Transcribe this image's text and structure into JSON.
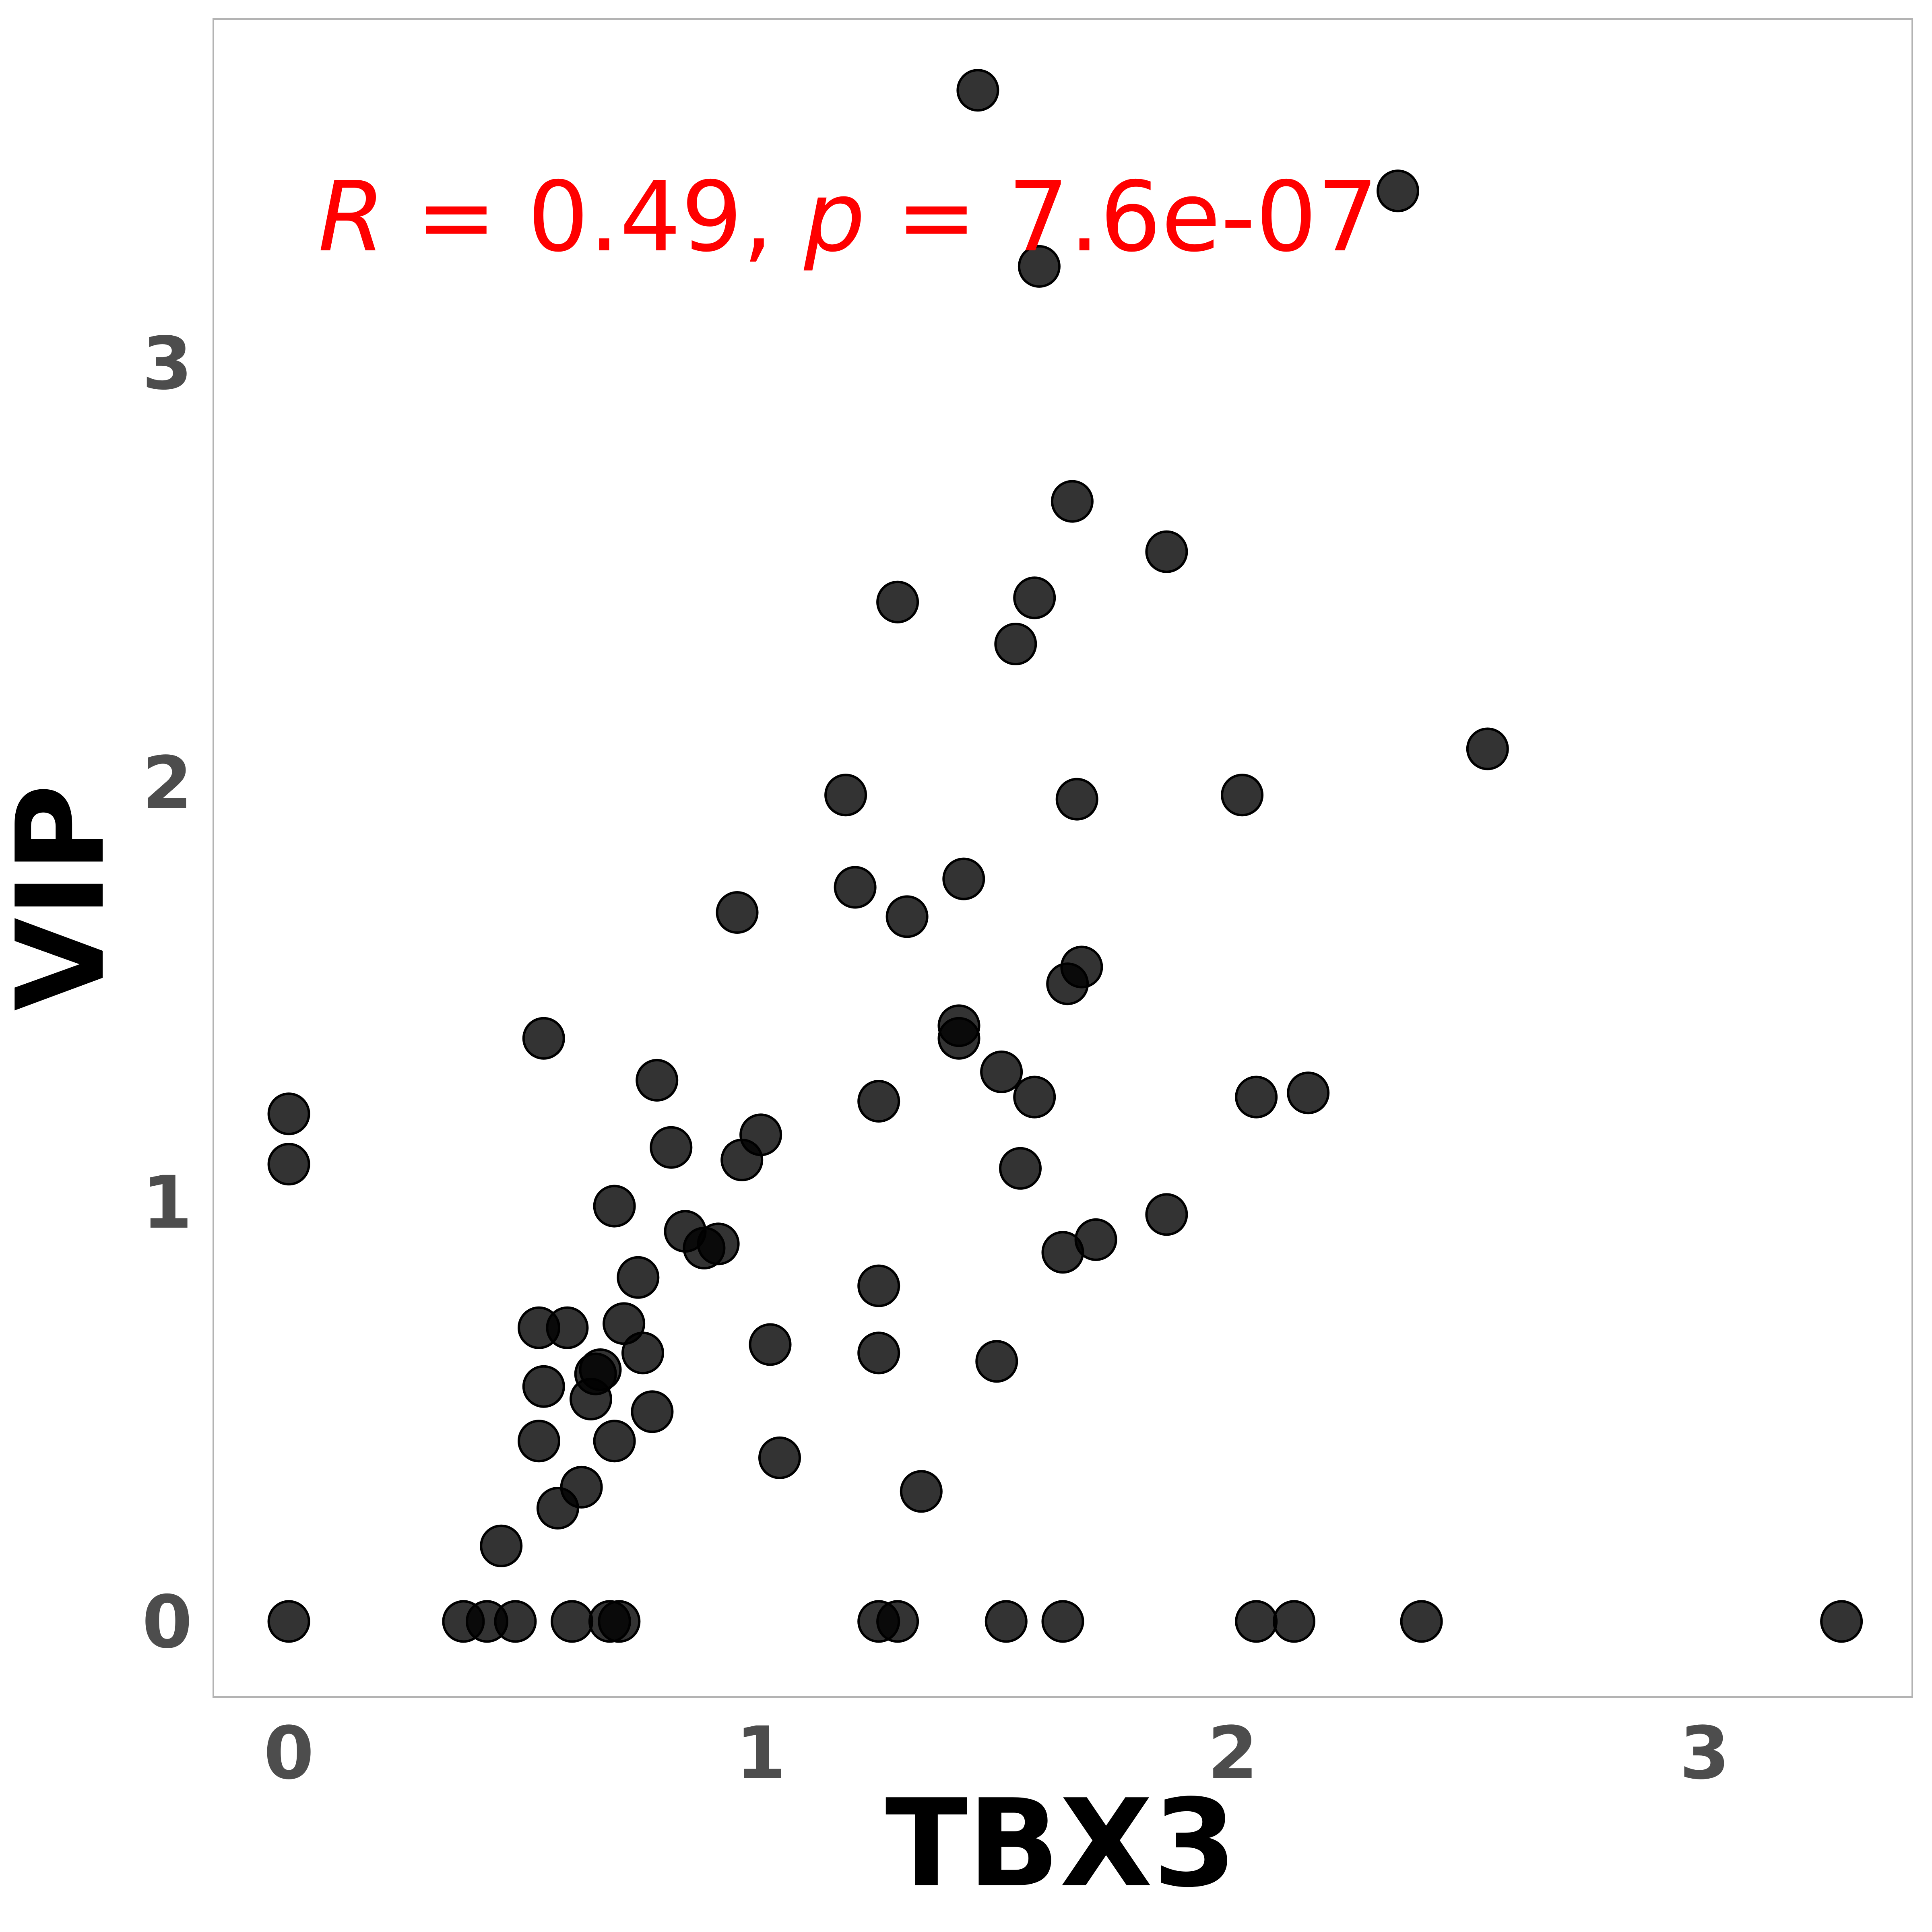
{
  "chart_data": {
    "type": "scatter",
    "xlabel": "TBX3",
    "ylabel": "VIP",
    "xlim": [
      -0.16,
      3.44
    ],
    "ylim": [
      -0.18,
      3.82
    ],
    "x_ticks": [
      0,
      1,
      2,
      3
    ],
    "y_ticks": [
      0,
      1,
      2,
      3
    ],
    "grid": false,
    "point_color": "#000000",
    "annotation": {
      "r_label": "R",
      "r_text": " = 0.49, ",
      "p_label": "p",
      "p_text": " = 7.6e-07",
      "color": "#ff0000"
    },
    "points": [
      {
        "x": 0,
        "y": 0
      },
      {
        "x": 0,
        "y": 1.21
      },
      {
        "x": 0,
        "y": 1.09
      },
      {
        "x": 0.37,
        "y": 0
      },
      {
        "x": 0.42,
        "y": 0
      },
      {
        "x": 0.48,
        "y": 0
      },
      {
        "x": 0.6,
        "y": 0
      },
      {
        "x": 0.68,
        "y": 0
      },
      {
        "x": 0.7,
        "y": 0
      },
      {
        "x": 1.25,
        "y": 0
      },
      {
        "x": 1.29,
        "y": 0
      },
      {
        "x": 1.52,
        "y": 0
      },
      {
        "x": 1.64,
        "y": 0
      },
      {
        "x": 2.05,
        "y": 0
      },
      {
        "x": 2.13,
        "y": 0
      },
      {
        "x": 2.4,
        "y": 0
      },
      {
        "x": 3.29,
        "y": 0
      },
      {
        "x": 0.45,
        "y": 0.18
      },
      {
        "x": 0.57,
        "y": 0.27
      },
      {
        "x": 0.62,
        "y": 0.32
      },
      {
        "x": 0.53,
        "y": 0.43
      },
      {
        "x": 0.69,
        "y": 0.43
      },
      {
        "x": 0.77,
        "y": 0.5
      },
      {
        "x": 0.54,
        "y": 0.56
      },
      {
        "x": 0.64,
        "y": 0.53
      },
      {
        "x": 0.65,
        "y": 0.59
      },
      {
        "x": 0.66,
        "y": 0.6
      },
      {
        "x": 0.53,
        "y": 0.7
      },
      {
        "x": 0.59,
        "y": 0.7
      },
      {
        "x": 0.71,
        "y": 0.71
      },
      {
        "x": 0.75,
        "y": 0.64
      },
      {
        "x": 0.74,
        "y": 0.82
      },
      {
        "x": 0.69,
        "y": 0.99
      },
      {
        "x": 0.84,
        "y": 0.93
      },
      {
        "x": 0.88,
        "y": 0.89
      },
      {
        "x": 0.91,
        "y": 0.9
      },
      {
        "x": 0.81,
        "y": 1.13
      },
      {
        "x": 0.78,
        "y": 1.29
      },
      {
        "x": 0.54,
        "y": 1.39
      },
      {
        "x": 0.96,
        "y": 1.1
      },
      {
        "x": 1.0,
        "y": 1.16
      },
      {
        "x": 1.02,
        "y": 0.66
      },
      {
        "x": 1.04,
        "y": 0.39
      },
      {
        "x": 0.95,
        "y": 1.69
      },
      {
        "x": 1.18,
        "y": 1.97
      },
      {
        "x": 1.2,
        "y": 1.75
      },
      {
        "x": 1.25,
        "y": 1.24
      },
      {
        "x": 1.25,
        "y": 0.8
      },
      {
        "x": 1.25,
        "y": 0.64
      },
      {
        "x": 1.29,
        "y": 2.43
      },
      {
        "x": 1.31,
        "y": 1.68
      },
      {
        "x": 1.34,
        "y": 0.31
      },
      {
        "x": 1.42,
        "y": 1.42
      },
      {
        "x": 1.42,
        "y": 1.39
      },
      {
        "x": 1.43,
        "y": 1.77
      },
      {
        "x": 1.46,
        "y": 3.65
      },
      {
        "x": 1.5,
        "y": 0.62
      },
      {
        "x": 1.51,
        "y": 1.31
      },
      {
        "x": 1.54,
        "y": 2.33
      },
      {
        "x": 1.55,
        "y": 1.08
      },
      {
        "x": 1.58,
        "y": 1.25
      },
      {
        "x": 1.58,
        "y": 2.44
      },
      {
        "x": 1.59,
        "y": 3.23
      },
      {
        "x": 1.64,
        "y": 0.88
      },
      {
        "x": 1.65,
        "y": 1.52
      },
      {
        "x": 1.66,
        "y": 2.67
      },
      {
        "x": 1.67,
        "y": 1.96
      },
      {
        "x": 1.68,
        "y": 1.56
      },
      {
        "x": 1.71,
        "y": 0.91
      },
      {
        "x": 1.86,
        "y": 0.97
      },
      {
        "x": 1.86,
        "y": 2.55
      },
      {
        "x": 2.02,
        "y": 1.97
      },
      {
        "x": 2.05,
        "y": 1.25
      },
      {
        "x": 2.16,
        "y": 1.26
      },
      {
        "x": 2.35,
        "y": 3.41
      },
      {
        "x": 2.54,
        "y": 2.08
      }
    ]
  }
}
